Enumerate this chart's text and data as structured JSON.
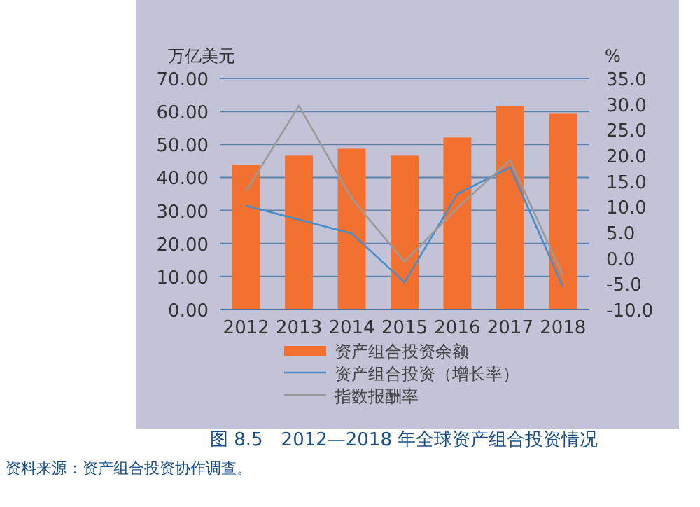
{
  "chart_data": {
    "type": "bar",
    "title": "图 8.5　2012—2018 年全球资产组合投资情况",
    "ylabel": "万亿美元",
    "y2label": "%",
    "categories": [
      "2012",
      "2013",
      "2014",
      "2015",
      "2016",
      "2017",
      "2018"
    ],
    "series": [
      {
        "name": "资产组合投资余额",
        "color": "#f37130",
        "values": [
          43.9,
          46.6,
          48.7,
          46.6,
          52.1,
          61.7,
          59.3
        ]
      },
      {
        "name": "资产组合投资（增长率）",
        "type": "line",
        "axis": "y2",
        "color": "#4a8cc8",
        "values": [
          10.2,
          7.5,
          4.8,
          -4.7,
          12.5,
          17.7,
          -5.6
        ]
      },
      {
        "name": "指数报酬率",
        "type": "line",
        "axis": "y2",
        "color": "#9a9a9a",
        "values": [
          13.1,
          29.7,
          11.6,
          -0.7,
          9.8,
          19.1,
          -3.4
        ]
      }
    ],
    "ylim": [
      0,
      70
    ],
    "yticks": [
      {
        "value": 0,
        "label": "0.00"
      },
      {
        "value": 10,
        "label": "10.00"
      },
      {
        "value": 20,
        "label": "20.00"
      },
      {
        "value": 30,
        "label": "30.00"
      },
      {
        "value": 40,
        "label": "40.00"
      },
      {
        "value": 50,
        "label": "50.00"
      },
      {
        "value": 60,
        "label": "60.00"
      },
      {
        "value": 70,
        "label": "70.00"
      }
    ],
    "y2lim": [
      -10,
      35
    ],
    "y2ticks": [
      {
        "value": -10,
        "label": "-10.0"
      },
      {
        "value": -5,
        "label": "-5.0"
      },
      {
        "value": 0,
        "label": "0.0"
      },
      {
        "value": 5,
        "label": "5.0"
      },
      {
        "value": 10,
        "label": "10.0"
      },
      {
        "value": 15,
        "label": "15.0"
      },
      {
        "value": 20,
        "label": "20.0"
      },
      {
        "value": 25,
        "label": "25.0"
      },
      {
        "value": 30,
        "label": "30.0"
      },
      {
        "value": 35,
        "label": "35.0"
      }
    ],
    "grid": "y",
    "legend": "bottom",
    "marker": "none",
    "line_style": "solid",
    "annotations": [
      "资料来源：资产组合投资协作调查。"
    ]
  }
}
